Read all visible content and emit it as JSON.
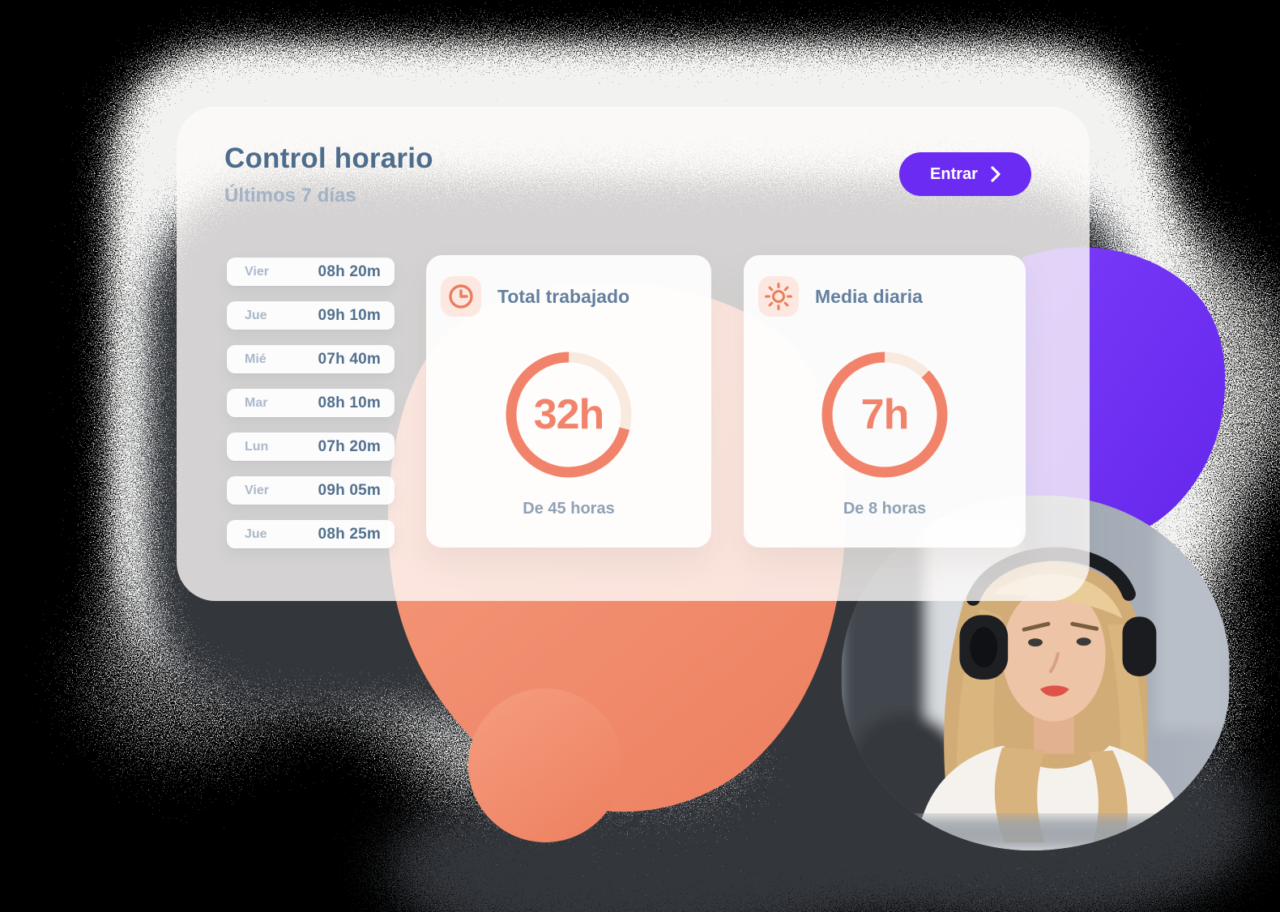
{
  "header": {
    "title": "Control horario",
    "subtitle": "Últimos 7 días",
    "cta_label": "Entrar"
  },
  "days": [
    {
      "label": "Vier",
      "value": "08h 20m"
    },
    {
      "label": "Jue",
      "value": "09h 10m"
    },
    {
      "label": "Mié",
      "value": "07h 40m"
    },
    {
      "label": "Mar",
      "value": "08h 10m"
    },
    {
      "label": "Lun",
      "value": "07h 20m"
    },
    {
      "label": "Vier",
      "value": "09h 05m"
    },
    {
      "label": "Jue",
      "value": "08h 25m"
    }
  ],
  "stats": [
    {
      "icon": "clock-icon",
      "title": "Total trabajado",
      "value_label": "32h",
      "caption": "De 45 horas",
      "hours_done": 32,
      "hours_total": 45
    },
    {
      "icon": "sun-icon",
      "title": "Media diaria",
      "value_label": "7h",
      "caption": "De 8 horas",
      "hours_done": 7,
      "hours_total": 8
    }
  ],
  "chart_data": [
    {
      "type": "donut",
      "title": "Total trabajado",
      "value": 32,
      "max": 45,
      "unit": "h",
      "center_label": "32h",
      "caption": "De 45 horas",
      "progress_color": "#F2836B",
      "track_color": "#F9EADF"
    },
    {
      "type": "donut",
      "title": "Media diaria",
      "value": 7,
      "max": 8,
      "unit": "h",
      "center_label": "7h",
      "caption": "De 8 horas",
      "progress_color": "#F2836B",
      "track_color": "#F9EADF"
    }
  ],
  "colors": {
    "accent_purple": "#6B2BF2",
    "accent_orange": "#EF8A68",
    "ring_orange": "#F2836B",
    "ring_track": "#F9EADF",
    "title_text": "#4E6C8B",
    "subtitle_text": "#A3B2C5",
    "day_label_text": "#ABB8C8",
    "day_value_text": "#53718F",
    "stat_title_text": "#64809E",
    "caption_text": "#8FA1B5",
    "icon_bg": "#FCE8E0"
  }
}
